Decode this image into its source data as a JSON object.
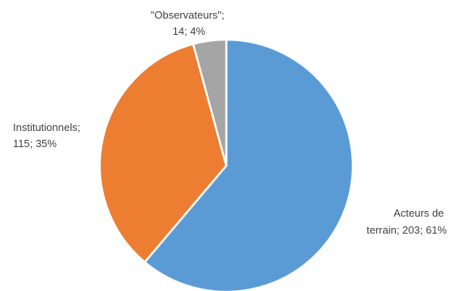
{
  "chart_data": {
    "type": "pie",
    "title": "",
    "slices": [
      {
        "category": "Acteurs de terrain",
        "value": 203,
        "percent": 61,
        "color": "#5B9BD5",
        "label_lines": [
          "Acteurs de",
          "terrain; 203; 61%"
        ]
      },
      {
        "category": "Institutionnels",
        "value": 115,
        "percent": 35,
        "color": "#ED7D31",
        "label_lines": [
          "Institutionnels;",
          "115; 35%"
        ]
      },
      {
        "category": "\"Observateurs\"",
        "value": 14,
        "percent": 4,
        "color": "#A5A5A5",
        "label_lines": [
          "\"Observateurs\";",
          "14; 4%"
        ]
      }
    ],
    "start_angle_deg": 0,
    "direction": "clockwise",
    "legend": "none"
  }
}
